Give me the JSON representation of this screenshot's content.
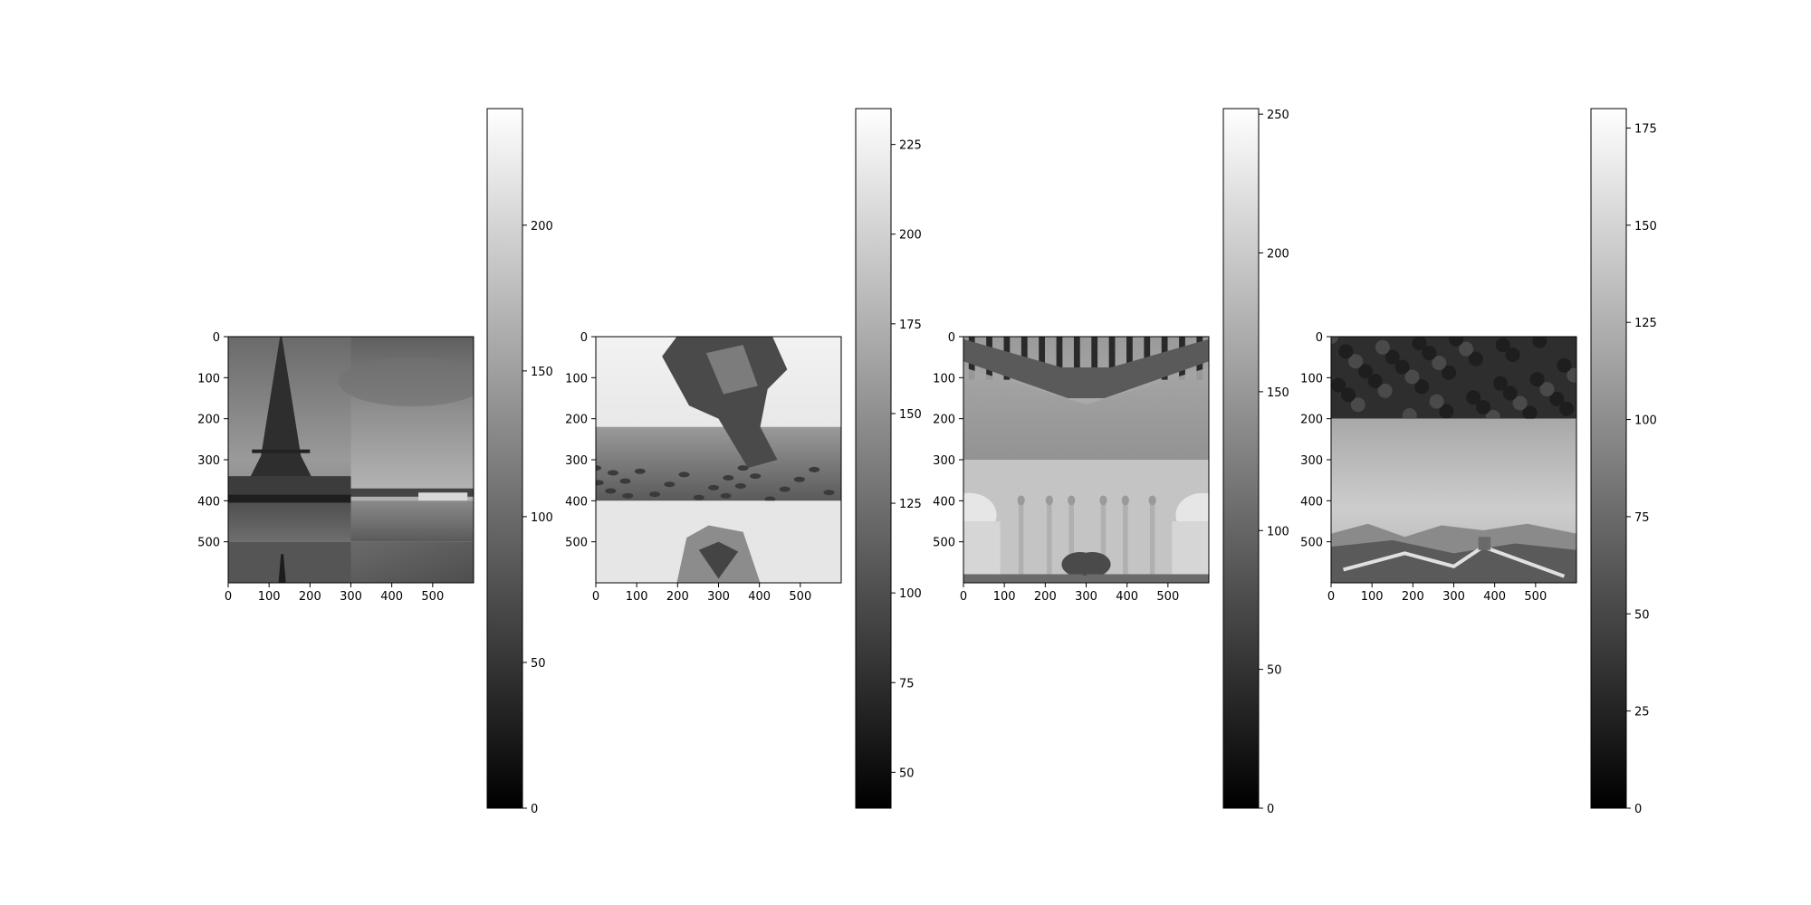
{
  "figure": {
    "background": "#ffffff"
  },
  "chart_data": [
    {
      "type": "heatmap",
      "title": "",
      "xlabel": "",
      "ylabel": "",
      "colormap": "gray",
      "image_shape": [
        600,
        600
      ],
      "xlim": [
        0,
        600
      ],
      "ylim": [
        600,
        0
      ],
      "xticks": [
        0,
        100,
        200,
        300,
        400,
        500
      ],
      "yticks": [
        0,
        100,
        200,
        300,
        400,
        500
      ],
      "subject": "eiffel-tower",
      "tiles": [
        {
          "x": [
            0,
            300
          ],
          "y": [
            0,
            500
          ],
          "scene": "eiffel-tower-river"
        },
        {
          "x": [
            300,
            600
          ],
          "y": [
            0,
            500
          ],
          "scene": "seine-river-clouds"
        },
        {
          "x": [
            0,
            300
          ],
          "y": [
            500,
            600
          ],
          "scene": "tower-tip-dark"
        },
        {
          "x": [
            300,
            600
          ],
          "y": [
            500,
            600
          ],
          "scene": "dark-sky"
        }
      ],
      "colorbar": {
        "min": 0,
        "max": 240,
        "ticks": [
          0,
          50,
          100,
          150,
          200
        ]
      }
    },
    {
      "type": "heatmap",
      "title": "",
      "xlabel": "",
      "ylabel": "",
      "colormap": "gray",
      "image_shape": [
        600,
        600
      ],
      "xlim": [
        0,
        600
      ],
      "ylim": [
        600,
        0
      ],
      "xticks": [
        0,
        100,
        200,
        300,
        400,
        500
      ],
      "yticks": [
        0,
        100,
        200,
        300,
        400,
        500
      ],
      "subject": "sphinx",
      "tiles": [
        {
          "x": [
            0,
            600
          ],
          "y": [
            0,
            400
          ],
          "scene": "sphinx-desert"
        },
        {
          "x": [
            0,
            600
          ],
          "y": [
            400,
            600
          ],
          "scene": "sphinx-head-bright"
        }
      ],
      "colorbar": {
        "min": 40,
        "max": 235,
        "ticks": [
          50,
          75,
          100,
          125,
          150,
          175,
          200,
          225
        ]
      }
    },
    {
      "type": "heatmap",
      "title": "",
      "xlabel": "",
      "ylabel": "",
      "colormap": "gray",
      "image_shape": [
        600,
        600
      ],
      "xlim": [
        0,
        600
      ],
      "ylim": [
        600,
        0
      ],
      "xticks": [
        0,
        100,
        200,
        300,
        400,
        500
      ],
      "yticks": [
        0,
        100,
        200,
        300,
        400,
        500
      ],
      "subject": "taj-mahal",
      "tiles": [
        {
          "x": [
            0,
            300
          ],
          "y": [
            0,
            300
          ],
          "scene": "reflecting-pool-left"
        },
        {
          "x": [
            300,
            600
          ],
          "y": [
            0,
            300
          ],
          "scene": "reflecting-pool-right"
        },
        {
          "x": [
            0,
            300
          ],
          "y": [
            300,
            600
          ],
          "scene": "taj-mahal-left"
        },
        {
          "x": [
            300,
            600
          ],
          "y": [
            300,
            600
          ],
          "scene": "taj-mahal-right"
        }
      ],
      "colorbar": {
        "min": 0,
        "max": 252,
        "ticks": [
          0,
          50,
          100,
          150,
          200,
          250
        ]
      }
    },
    {
      "type": "heatmap",
      "title": "",
      "xlabel": "",
      "ylabel": "",
      "colormap": "gray",
      "image_shape": [
        600,
        600
      ],
      "xlim": [
        0,
        600
      ],
      "ylim": [
        600,
        0
      ],
      "xticks": [
        0,
        100,
        200,
        300,
        400,
        500
      ],
      "yticks": [
        0,
        100,
        200,
        300,
        400,
        500
      ],
      "subject": "great-wall",
      "tiles": [
        {
          "x": [
            0,
            600
          ],
          "y": [
            0,
            200
          ],
          "scene": "dark-forest"
        },
        {
          "x": [
            0,
            600
          ],
          "y": [
            200,
            600
          ],
          "scene": "great-wall-mountains"
        }
      ],
      "colorbar": {
        "min": 0,
        "max": 180,
        "ticks": [
          0,
          25,
          50,
          75,
          100,
          125,
          150,
          175
        ]
      }
    }
  ]
}
